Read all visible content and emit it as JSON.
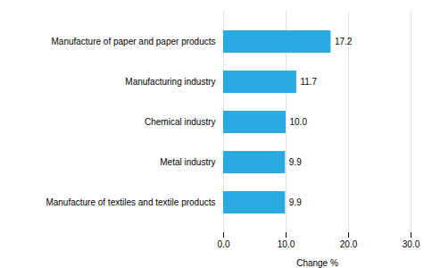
{
  "chart_data": {
    "type": "bar",
    "orientation": "horizontal",
    "categories": [
      "Manufacture of textiles and textile products",
      "Metal industry",
      "Chemical industry",
      "Manufacturing industry",
      "Manufacture of paper and paper products"
    ],
    "values": [
      9.9,
      9.9,
      10.0,
      11.7,
      17.2
    ],
    "value_labels": [
      "9.9",
      "9.9",
      "10.0",
      "11.7",
      "17.2"
    ],
    "data_labels": true,
    "color": "#29ABE2",
    "xlabel": "Change %",
    "xlim": [
      0,
      30
    ],
    "xticks": [
      {
        "value": 0,
        "label": "0.0"
      },
      {
        "value": 10,
        "label": "10.0"
      },
      {
        "value": 20,
        "label": "20.0"
      },
      {
        "value": 30,
        "label": "30.0"
      }
    ],
    "grid": true
  }
}
